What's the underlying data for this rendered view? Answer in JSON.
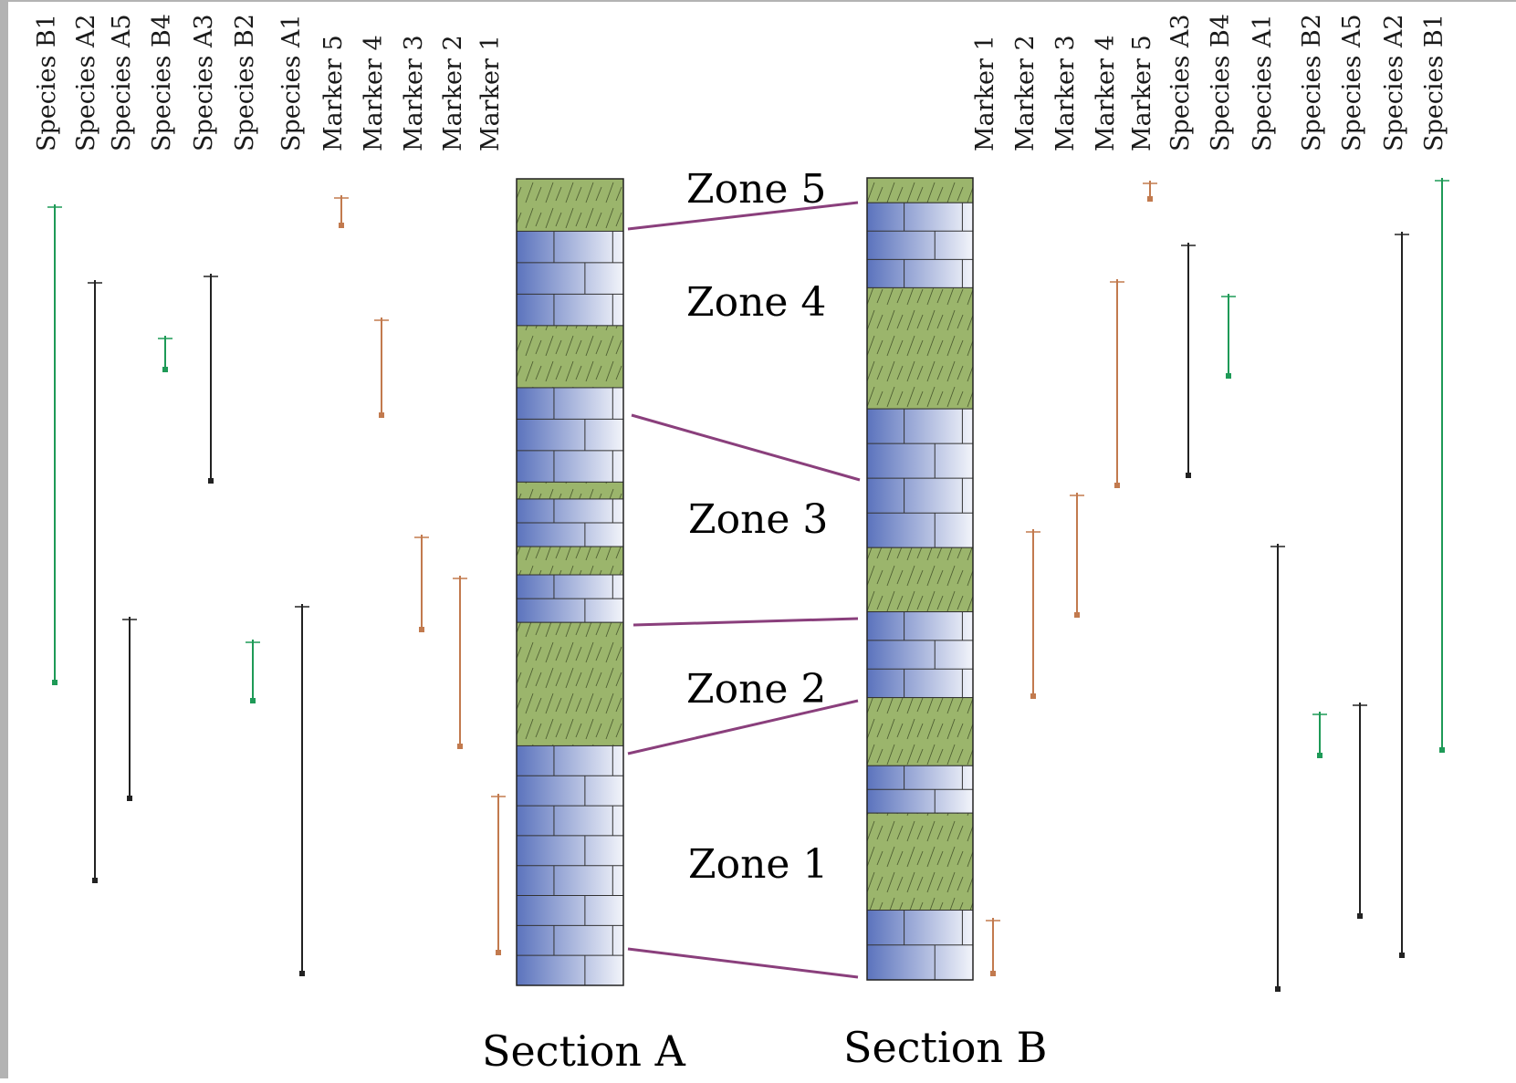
{
  "colors": {
    "frame": "#b3b3b3",
    "sandstone": "#9bb56c",
    "limestone_dark": "#5b73bd",
    "limestone_light": "#f2f4fa",
    "correlation": "#8a3f7c",
    "marker_range": "#c27a4e",
    "species_a_range": "#222222",
    "species_b_range": "#1e9a57"
  },
  "section_a": {
    "label": "Section A",
    "left_columns": [
      {
        "label": "Species B1",
        "kind": "species_b"
      },
      {
        "label": "Species A2",
        "kind": "species_a"
      },
      {
        "label": "Species A5",
        "kind": "species_a"
      },
      {
        "label": "Species B4",
        "kind": "species_b"
      },
      {
        "label": "Species A3",
        "kind": "species_a"
      },
      {
        "label": "Species B2",
        "kind": "species_b"
      },
      {
        "label": "Species A1",
        "kind": "species_a"
      },
      {
        "label": "Marker 5",
        "kind": "marker"
      },
      {
        "label": "Marker 4",
        "kind": "marker"
      },
      {
        "label": "Marker 3",
        "kind": "marker"
      },
      {
        "label": "Marker 2",
        "kind": "marker"
      },
      {
        "label": "Marker 1",
        "kind": "marker"
      }
    ],
    "layers": [
      {
        "type": "sandstone",
        "top": 0.0,
        "bottom": 0.065
      },
      {
        "type": "limestone",
        "top": 0.065,
        "bottom": 0.182
      },
      {
        "type": "sandstone",
        "top": 0.182,
        "bottom": 0.259
      },
      {
        "type": "limestone",
        "top": 0.259,
        "bottom": 0.376
      },
      {
        "type": "sandstone",
        "top": 0.376,
        "bottom": 0.397
      },
      {
        "type": "limestone",
        "top": 0.397,
        "bottom": 0.456
      },
      {
        "type": "sandstone",
        "top": 0.456,
        "bottom": 0.491
      },
      {
        "type": "limestone",
        "top": 0.491,
        "bottom": 0.55
      },
      {
        "type": "sandstone",
        "top": 0.55,
        "bottom": 0.703
      },
      {
        "type": "limestone",
        "top": 0.703,
        "bottom": 1.0
      }
    ]
  },
  "section_b": {
    "label": "Section B",
    "right_columns": [
      {
        "label": "Marker 1",
        "kind": "marker"
      },
      {
        "label": "Marker 2",
        "kind": "marker"
      },
      {
        "label": "Marker 3",
        "kind": "marker"
      },
      {
        "label": "Marker 4",
        "kind": "marker"
      },
      {
        "label": "Marker 5",
        "kind": "marker"
      },
      {
        "label": "Species A3",
        "kind": "species_a"
      },
      {
        "label": "Species B4",
        "kind": "species_b"
      },
      {
        "label": "Species A1",
        "kind": "species_a"
      },
      {
        "label": "Species B2",
        "kind": "species_b"
      },
      {
        "label": "Species A5",
        "kind": "species_a"
      },
      {
        "label": "Species A2",
        "kind": "species_a"
      },
      {
        "label": "Species B1",
        "kind": "species_b"
      }
    ],
    "layers": [
      {
        "type": "sandstone",
        "top": 0.0,
        "bottom": 0.031
      },
      {
        "type": "limestone",
        "top": 0.031,
        "bottom": 0.137
      },
      {
        "type": "sandstone",
        "top": 0.137,
        "bottom": 0.288
      },
      {
        "type": "limestone",
        "top": 0.288,
        "bottom": 0.461
      },
      {
        "type": "sandstone",
        "top": 0.461,
        "bottom": 0.541
      },
      {
        "type": "limestone",
        "top": 0.541,
        "bottom": 0.648
      },
      {
        "type": "sandstone",
        "top": 0.648,
        "bottom": 0.733
      },
      {
        "type": "limestone",
        "top": 0.733,
        "bottom": 0.792
      },
      {
        "type": "sandstone",
        "top": 0.792,
        "bottom": 0.913
      },
      {
        "type": "limestone",
        "top": 0.913,
        "bottom": 1.0
      }
    ]
  },
  "zones": [
    {
      "label": "Zone 5"
    },
    {
      "label": "Zone 4"
    },
    {
      "label": "Zone 3"
    },
    {
      "label": "Zone 2"
    },
    {
      "label": "Zone 1"
    }
  ]
}
